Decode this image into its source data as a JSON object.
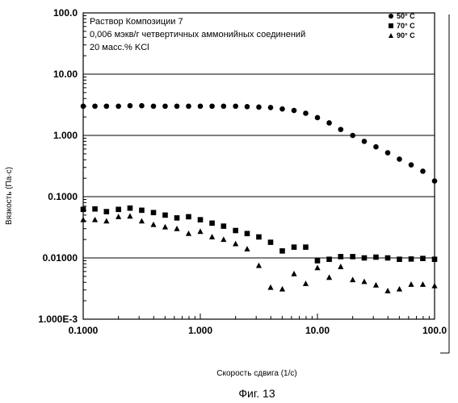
{
  "chart_data": {
    "type": "scatter",
    "xscale": "log",
    "yscale": "log",
    "xlim": [
      0.1,
      100
    ],
    "ylim": [
      0.001,
      100
    ],
    "grid": "horizontal",
    "legend_position": "top-right",
    "xlabel": "Скорость сдвига (1/с)",
    "ylabel": "Вязкость (Па·с)",
    "annotation_lines": [
      "Раствор Композиции 7",
      "0,006 мэкв/г четвертичных аммонийных соединений",
      "20 масс.% KCl"
    ],
    "xticks": [
      "0.1000",
      "1.000",
      "10.00",
      "100.0"
    ],
    "yticks": [
      "1.000E-3",
      "0.01000",
      "0.1000",
      "1.000",
      "10.00",
      "100.0"
    ],
    "caption": "Фиг. 13",
    "series": [
      {
        "name": "50° C",
        "marker": "circle",
        "x": [
          0.1,
          0.126,
          0.158,
          0.2,
          0.251,
          0.316,
          0.398,
          0.501,
          0.631,
          0.794,
          1.0,
          1.26,
          1.58,
          2.0,
          2.51,
          3.16,
          3.98,
          5.01,
          6.31,
          7.94,
          10.0,
          12.6,
          15.8,
          20.0,
          25.1,
          31.6,
          39.8,
          50.1,
          63.1,
          79.4,
          100
        ],
        "y": [
          3.0,
          3.0,
          3.0,
          3.0,
          3.05,
          3.05,
          3.0,
          3.0,
          3.0,
          3.0,
          3.0,
          3.0,
          3.0,
          3.0,
          2.95,
          2.9,
          2.85,
          2.7,
          2.55,
          2.3,
          1.95,
          1.6,
          1.25,
          1.0,
          0.8,
          0.65,
          0.52,
          0.41,
          0.33,
          0.26,
          0.18
        ]
      },
      {
        "name": "70° C",
        "marker": "square",
        "x": [
          0.1,
          0.126,
          0.158,
          0.2,
          0.251,
          0.316,
          0.398,
          0.501,
          0.631,
          0.794,
          1.0,
          1.26,
          1.58,
          2.0,
          2.51,
          3.16,
          3.98,
          5.01,
          6.31,
          7.94,
          10.0,
          12.6,
          15.8,
          20.0,
          25.1,
          31.6,
          39.8,
          50.1,
          63.1,
          79.4,
          100
        ],
        "y": [
          0.062,
          0.063,
          0.057,
          0.062,
          0.065,
          0.06,
          0.055,
          0.05,
          0.045,
          0.047,
          0.042,
          0.037,
          0.033,
          0.028,
          0.025,
          0.022,
          0.018,
          0.013,
          0.015,
          0.015,
          0.009,
          0.0095,
          0.0105,
          0.0105,
          0.01,
          0.0103,
          0.01,
          0.0095,
          0.0096,
          0.0098,
          0.0095
        ]
      },
      {
        "name": "90° C",
        "marker": "triangle",
        "x": [
          0.1,
          0.126,
          0.158,
          0.2,
          0.251,
          0.316,
          0.398,
          0.501,
          0.631,
          0.794,
          1.0,
          1.26,
          1.58,
          2.0,
          2.51,
          3.16,
          3.98,
          5.01,
          6.31,
          7.94,
          10.0,
          12.6,
          15.8,
          20.0,
          25.1,
          31.6,
          39.8,
          50.1,
          63.1,
          79.4,
          100
        ],
        "y": [
          0.042,
          0.042,
          0.04,
          0.047,
          0.048,
          0.04,
          0.035,
          0.032,
          0.03,
          0.025,
          0.027,
          0.022,
          0.02,
          0.017,
          0.014,
          0.0075,
          0.0033,
          0.0031,
          0.0055,
          0.0038,
          0.0069,
          0.0048,
          0.0072,
          0.0044,
          0.0041,
          0.0036,
          0.0029,
          0.0031,
          0.0037,
          0.0037,
          0.0035
        ]
      }
    ]
  }
}
